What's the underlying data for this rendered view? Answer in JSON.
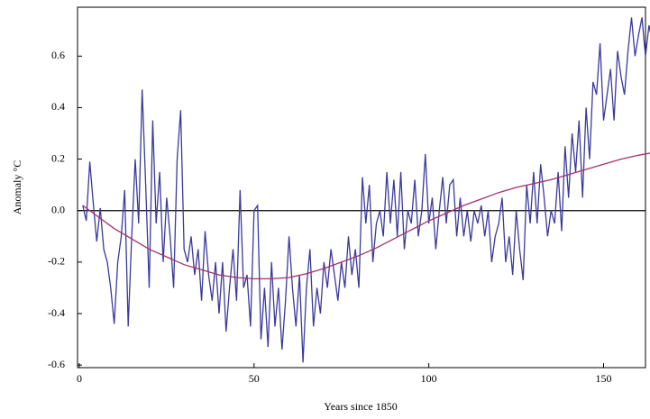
{
  "chart_data": {
    "type": "line",
    "xlabel": "Years since 1850",
    "ylabel": "Anomaly °C",
    "xlim": [
      -0.5,
      162
    ],
    "ylim": [
      -0.61,
      0.79
    ],
    "xticks": [
      0,
      50,
      100,
      150
    ],
    "yticks": [
      -0.6,
      -0.4,
      -0.2,
      {
        "value": 0,
        "label": "0.0"
      },
      0.2,
      0.4,
      0.6
    ],
    "zero_line": true,
    "series": [
      {
        "color": "#3a3a9c",
        "x": [
          1,
          2,
          3,
          4,
          5,
          6,
          7,
          8,
          9,
          10,
          11,
          12,
          13,
          14,
          15,
          16,
          17,
          18,
          19,
          20,
          21,
          22,
          23,
          24,
          25,
          26,
          27,
          28,
          29,
          30,
          31,
          32,
          33,
          34,
          35,
          36,
          37,
          38,
          39,
          40,
          41,
          42,
          43,
          44,
          45,
          46,
          47,
          48,
          49,
          50,
          51,
          52,
          53,
          54,
          55,
          56,
          57,
          58,
          59,
          60,
          61,
          62,
          63,
          64,
          65,
          66,
          67,
          68,
          69,
          70,
          71,
          72,
          73,
          74,
          75,
          76,
          77,
          78,
          79,
          80,
          81,
          82,
          83,
          84,
          85,
          86,
          87,
          88,
          89,
          90,
          91,
          92,
          93,
          94,
          95,
          96,
          97,
          98,
          99,
          100,
          101,
          102,
          103,
          104,
          105,
          106,
          107,
          108,
          109,
          110,
          111,
          112,
          113,
          114,
          115,
          116,
          117,
          118,
          119,
          120,
          121,
          122,
          123,
          124,
          125,
          126,
          127,
          128,
          129,
          130,
          131,
          132,
          133,
          134,
          135,
          136,
          137,
          138,
          139,
          140,
          141,
          142,
          143,
          144,
          145,
          146,
          147,
          148,
          149,
          150,
          151,
          152,
          153,
          154,
          155,
          156,
          157,
          158,
          159,
          160,
          161,
          162,
          163,
          164
        ],
        "values": [
          0.02,
          -0.04,
          0.19,
          0.03,
          -0.12,
          0.01,
          -0.15,
          -0.2,
          -0.3,
          -0.44,
          -0.2,
          -0.1,
          0.08,
          -0.45,
          -0.1,
          0.2,
          -0.05,
          0.47,
          0.1,
          -0.3,
          0.35,
          -0.05,
          0.15,
          -0.2,
          0.05,
          -0.1,
          -0.3,
          0.2,
          0.39,
          -0.15,
          -0.2,
          -0.1,
          -0.25,
          -0.15,
          -0.35,
          -0.08,
          -0.25,
          -0.35,
          -0.2,
          -0.4,
          -0.2,
          -0.47,
          -0.3,
          -0.15,
          -0.35,
          0.08,
          -0.3,
          -0.25,
          -0.45,
          0.0,
          0.02,
          -0.5,
          -0.3,
          -0.53,
          -0.2,
          -0.45,
          -0.3,
          -0.54,
          -0.35,
          -0.1,
          -0.3,
          -0.45,
          -0.25,
          -0.59,
          -0.3,
          -0.15,
          -0.45,
          -0.3,
          -0.4,
          -0.2,
          -0.3,
          -0.15,
          -0.25,
          -0.35,
          -0.2,
          -0.3,
          -0.1,
          -0.25,
          -0.15,
          -0.3,
          0.13,
          -0.05,
          0.1,
          -0.2,
          -0.05,
          0.0,
          -0.1,
          0.15,
          -0.05,
          0.12,
          -0.1,
          0.15,
          -0.15,
          0.0,
          -0.05,
          0.12,
          -0.1,
          0.0,
          0.22,
          -0.05,
          0.05,
          -0.15,
          0.0,
          0.13,
          -0.05,
          0.1,
          0.12,
          -0.1,
          0.05,
          -0.1,
          0.0,
          -0.12,
          0.0,
          -0.05,
          0.02,
          -0.1,
          0.0,
          -0.2,
          -0.1,
          -0.05,
          0.05,
          -0.2,
          -0.1,
          -0.25,
          0.0,
          -0.15,
          -0.27,
          0.1,
          -0.05,
          0.15,
          -0.05,
          0.18,
          0.05,
          -0.1,
          0.0,
          -0.05,
          0.15,
          -0.08,
          0.25,
          0.05,
          0.3,
          0.15,
          0.35,
          0.05,
          0.4,
          0.2,
          0.5,
          0.45,
          0.65,
          0.35,
          0.45,
          0.55,
          0.35,
          0.62,
          0.52,
          0.45,
          0.62,
          0.75,
          0.6,
          0.68,
          0.75,
          0.6,
          0.72,
          0.65
        ]
      },
      {
        "color": "#a3306c",
        "x": [
          1,
          5,
          10,
          15,
          20,
          25,
          30,
          35,
          40,
          45,
          50,
          55,
          60,
          65,
          70,
          75,
          80,
          85,
          90,
          95,
          100,
          105,
          110,
          115,
          120,
          125,
          130,
          135,
          140,
          145,
          150,
          155,
          160,
          164
        ],
        "values": [
          0.02,
          -0.02,
          -0.07,
          -0.11,
          -0.15,
          -0.18,
          -0.21,
          -0.23,
          -0.25,
          -0.26,
          -0.265,
          -0.265,
          -0.26,
          -0.245,
          -0.225,
          -0.2,
          -0.175,
          -0.145,
          -0.11,
          -0.075,
          -0.04,
          -0.01,
          0.02,
          0.045,
          0.07,
          0.09,
          0.105,
          0.12,
          0.14,
          0.16,
          0.18,
          0.2,
          0.215,
          0.225
        ]
      }
    ]
  }
}
